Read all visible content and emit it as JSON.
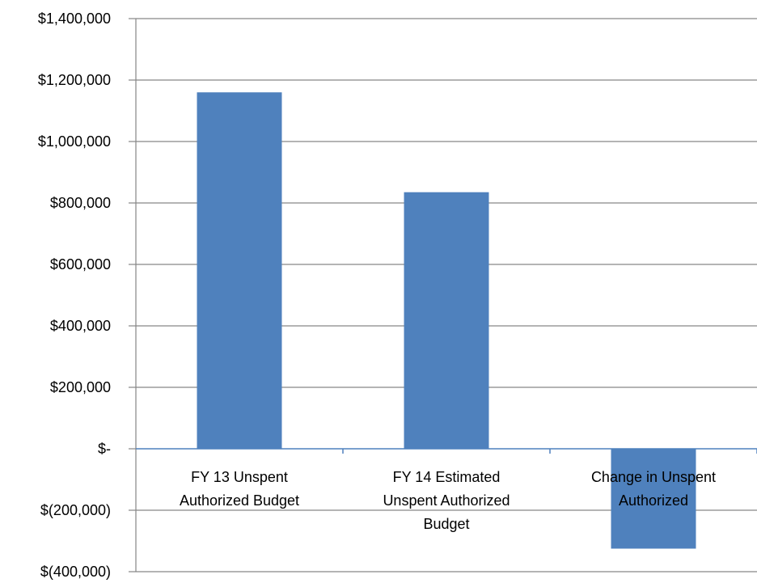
{
  "chart_data": {
    "type": "bar",
    "title": "",
    "xlabel": "",
    "ylabel": "",
    "categories": [
      [
        "FY 13 Unspent",
        "Authorized Budget"
      ],
      [
        "FY 14 Estimated",
        "Unspent Authorized",
        "Budget"
      ],
      [
        "Change in Unspent",
        "Authorized"
      ]
    ],
    "values": [
      1160000,
      835000,
      -325000
    ],
    "ylim": [
      -400000,
      1400000
    ],
    "yticks": [
      {
        "value": 1400000,
        "label": "$1,400,000"
      },
      {
        "value": 1200000,
        "label": "$1,200,000"
      },
      {
        "value": 1000000,
        "label": "$1,000,000"
      },
      {
        "value": 800000,
        "label": "$800,000"
      },
      {
        "value": 600000,
        "label": "$600,000"
      },
      {
        "value": 400000,
        "label": "$400,000"
      },
      {
        "value": 200000,
        "label": "$200,000"
      },
      {
        "value": 0,
        "label": "$-"
      },
      {
        "value": -200000,
        "label": "$(200,000)"
      },
      {
        "value": -400000,
        "label": "$(400,000)"
      }
    ],
    "grid": true,
    "legend": "none",
    "colors": {
      "bar": "#4F81BD",
      "grid": "#868686",
      "axis": "#4F81BD"
    }
  }
}
